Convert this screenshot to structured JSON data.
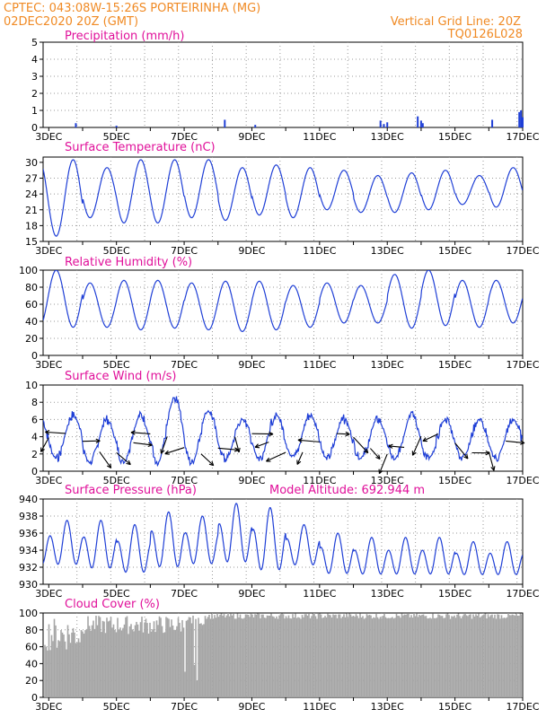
{
  "header": {
    "line1_left": "CPTEC:   043:08W-15:26S   PORTEIRINHA (MG)",
    "line2_left": "02DEC2020 20Z (GMT)",
    "line1_right": "Vertical Grid Line: 20Z",
    "line2_right": "TQ0126L028"
  },
  "x_labels": [
    "3DEC",
    "5DEC",
    "7DEC",
    "9DEC",
    "11DEC",
    "13DEC",
    "15DEC",
    "17DEC"
  ],
  "colors": {
    "series": "#1f3fd6",
    "wind_arrow": "#000000",
    "cloud": "#a6a6a6",
    "header": "#f08a24",
    "title": "#e0109a"
  },
  "chart_data": [
    {
      "type": "bar",
      "title": "Precipitation (mm/h)",
      "ylim": [
        0,
        5
      ],
      "yticks": [
        "0",
        "1",
        "2",
        "3",
        "4",
        "5"
      ],
      "days": [
        2.83,
        17.0
      ],
      "spikes": [
        [
          3.8,
          0.25
        ],
        [
          5.0,
          0.1
        ],
        [
          8.2,
          0.45
        ],
        [
          9.1,
          0.15
        ],
        [
          12.8,
          0.4
        ],
        [
          12.9,
          0.2
        ],
        [
          13.0,
          0.3
        ],
        [
          13.9,
          0.65
        ],
        [
          14.0,
          0.4
        ],
        [
          14.05,
          0.25
        ],
        [
          16.1,
          0.45
        ],
        [
          16.9,
          0.9
        ],
        [
          16.95,
          1.0
        ],
        [
          17.0,
          0.6
        ]
      ]
    },
    {
      "type": "line",
      "title": "Surface Temperature (nC)",
      "ylim": [
        15,
        31
      ],
      "yticks": [
        "15",
        "18",
        "21",
        "24",
        "27",
        "30"
      ],
      "mins": [
        16.0,
        19.5,
        18.5,
        18.5,
        19.5,
        19.0,
        20.0,
        19.5,
        21.0,
        20.5,
        20.5,
        21.0,
        22.0,
        21.5
      ],
      "maxs": [
        30.5,
        29.0,
        30.5,
        30.5,
        30.5,
        29.0,
        29.5,
        29.0,
        28.5,
        27.5,
        28.0,
        28.5,
        27.5,
        29.0
      ]
    },
    {
      "type": "line",
      "title": "Relative Humidity (%)",
      "ylim": [
        0,
        100
      ],
      "yticks": [
        "0",
        "20",
        "40",
        "60",
        "80",
        "100"
      ],
      "mins": [
        33,
        33,
        30,
        32,
        30,
        28,
        30,
        33,
        38,
        38,
        32,
        35,
        33,
        38
      ],
      "maxs": [
        100,
        85,
        88,
        88,
        85,
        87,
        87,
        82,
        85,
        82,
        95,
        100,
        88,
        88
      ]
    },
    {
      "type": "line",
      "title": "Surface Wind (m/s)",
      "ylim": [
        0,
        10
      ],
      "yticks": [
        "0",
        "2",
        "4",
        "6",
        "8",
        "10"
      ],
      "mins": [
        1.5,
        1.0,
        1.0,
        1.0,
        1.0,
        1.5,
        1.5,
        1.5,
        1.5,
        1.5,
        1.5,
        1.5,
        1.5,
        1.5
      ],
      "maxs": [
        6.5,
        6.0,
        6.5,
        8.5,
        7.0,
        6.0,
        6.5,
        6.5,
        6.0,
        6.0,
        6.5,
        6.0,
        6.0,
        6.0
      ]
    },
    {
      "type": "line",
      "title": "Surface Pressure (hPa)",
      "subtitle": "Model Altitude: 692.944 m",
      "ylim": [
        930,
        940
      ],
      "yticks": [
        "930",
        "932",
        "934",
        "936",
        "938",
        "940"
      ],
      "lows": [
        931.5,
        931.0,
        930.5,
        931.0,
        931.5,
        931.5,
        930.5,
        931.5,
        930.5,
        930.5,
        930.5,
        930.5,
        930.5,
        930.5
      ],
      "highs": [
        937.5,
        937.5,
        937.0,
        938.5,
        938.0,
        939.5,
        939.0,
        937.0,
        936.0,
        935.5,
        935.5,
        935.5,
        935.0,
        935.0
      ]
    },
    {
      "type": "area",
      "title": "Cloud Cover (%)",
      "ylim": [
        0,
        100
      ],
      "yticks": [
        "0",
        "20",
        "40",
        "60",
        "80",
        "100"
      ]
    }
  ]
}
